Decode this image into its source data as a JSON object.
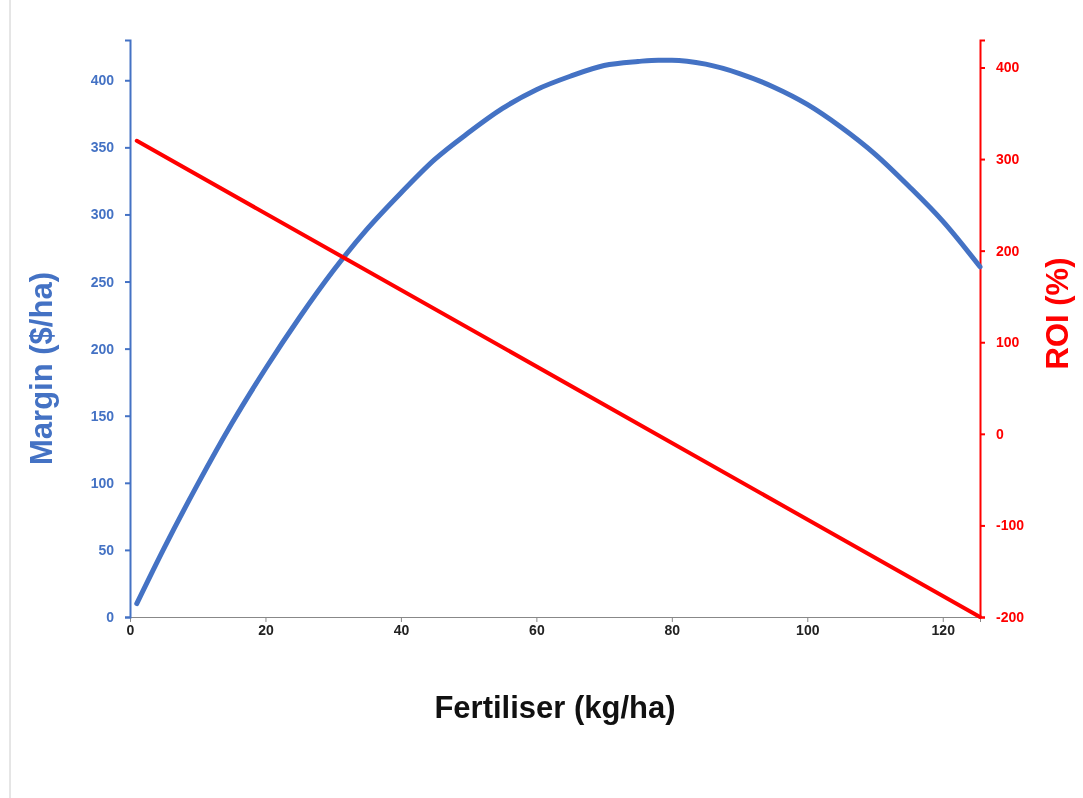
{
  "chart_data": {
    "type": "line",
    "xlabel": "Fertiliser (kg/ha)",
    "ylabel": "Margin ($/ha)",
    "y2label": "ROI (%)",
    "xlim": [
      0,
      125.5
    ],
    "xticks": [
      0,
      20,
      40,
      60,
      80,
      100,
      120
    ],
    "ylim": [
      0,
      430
    ],
    "yticks": [
      0,
      50,
      100,
      150,
      200,
      250,
      300,
      350,
      400
    ],
    "y2lim": [
      -200,
      430
    ],
    "y2ticks": [
      -200,
      -100,
      0,
      100,
      200,
      300,
      400
    ],
    "grid": false,
    "marker": "none",
    "line_style": "solid",
    "series": [
      {
        "color": "#4472c4",
        "x": [
          1,
          5,
          10,
          15,
          20,
          25,
          30,
          35,
          40,
          45,
          50,
          55,
          60,
          65,
          70,
          75,
          78,
          80,
          85,
          90,
          95,
          100,
          105,
          110,
          115,
          120,
          125.5
        ],
        "values": [
          10,
          51,
          99,
          144,
          185,
          223,
          258,
          289,
          316,
          341,
          361,
          379,
          393,
          403,
          411,
          414,
          415,
          415,
          412,
          405,
          395,
          382,
          365,
          345,
          321,
          295,
          261
        ]
      },
      {
        "color": "#ff0000",
        "axis": "y2",
        "x": [
          1,
          125.5
        ],
        "values": [
          320,
          -200
        ]
      }
    ]
  }
}
